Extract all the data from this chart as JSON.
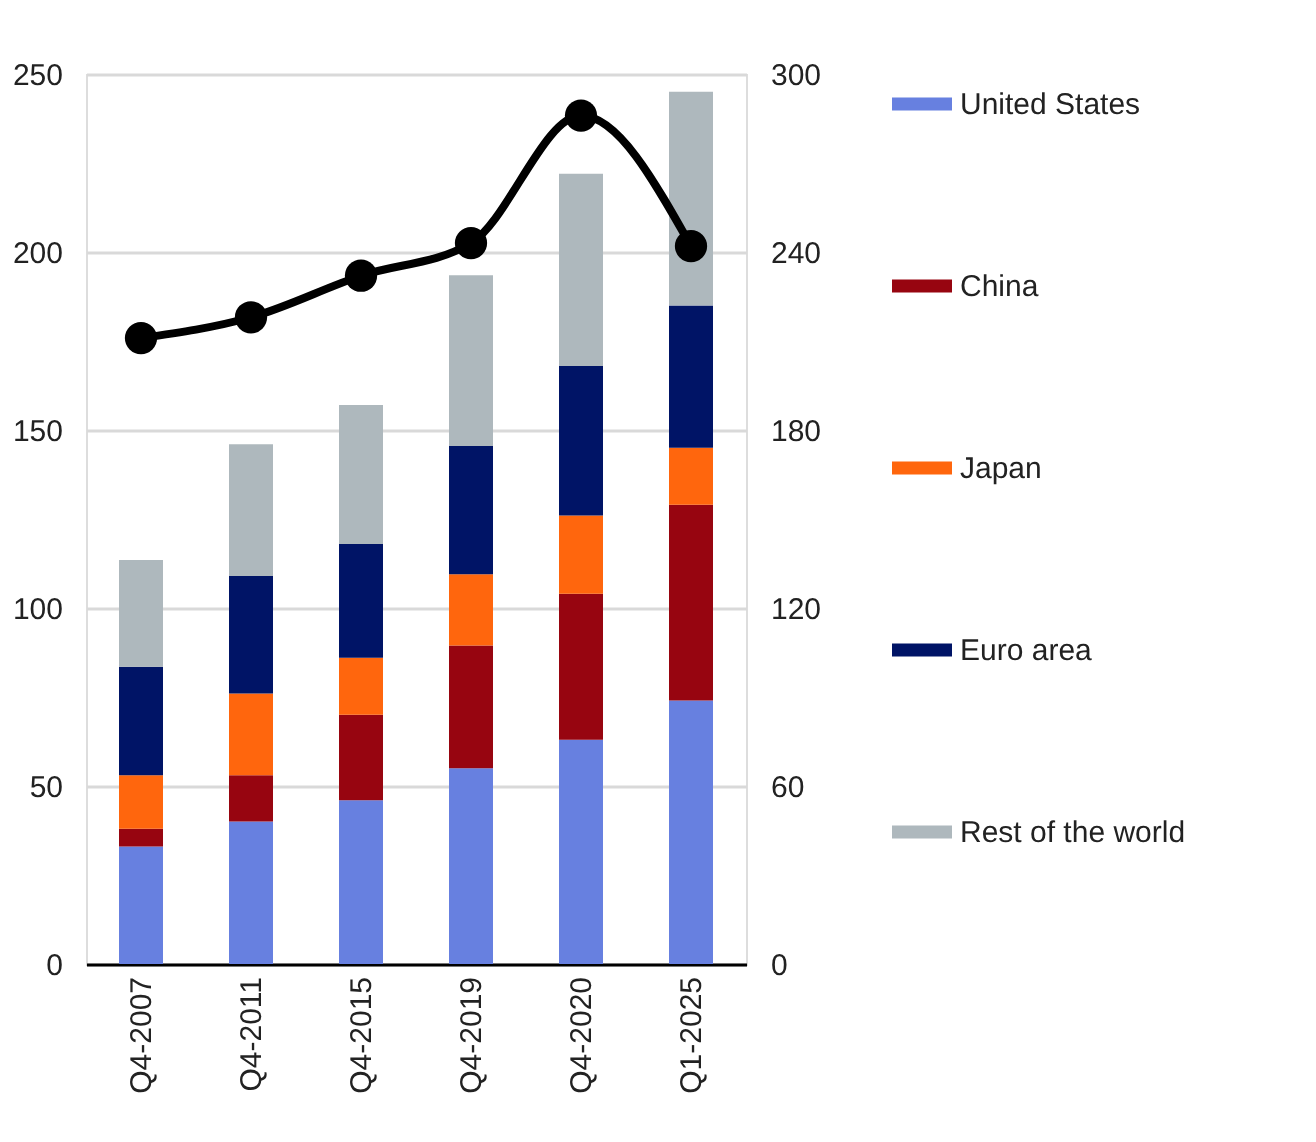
{
  "chart_data": {
    "type": "bar",
    "stacked": true,
    "categories": [
      "Q4-2007",
      "Q4-2011",
      "Q4-2015",
      "Q4-2019",
      "Q4-2020",
      "Q1-2025"
    ],
    "series": [
      {
        "name": "United States",
        "color": "#6780e0",
        "values": [
          33,
          40,
          46,
          55,
          63,
          74
        ]
      },
      {
        "name": "China",
        "color": "#970510",
        "values": [
          5,
          13,
          24,
          34.5,
          41,
          55
        ]
      },
      {
        "name": "Japan",
        "color": "#ff660d",
        "values": [
          15,
          23,
          16,
          20,
          22,
          16
        ]
      },
      {
        "name": "Euro area",
        "color": "#001466",
        "values": [
          30.5,
          33,
          32,
          36,
          42,
          40
        ]
      },
      {
        "name": "Rest of the world",
        "color": "#aeb8bd",
        "values": [
          30,
          37,
          39,
          48,
          54,
          60
        ]
      },
      {
        "type": "line",
        "axis": "y2",
        "color": "#000000",
        "values": [
          211,
          218,
          232,
          243,
          286,
          242
        ]
      }
    ],
    "ylim": [
      0,
      250
    ],
    "yticks": [
      0,
      50,
      100,
      150,
      200,
      250
    ],
    "y2lim": [
      0,
      300
    ],
    "y2ticks": [
      0,
      60,
      120,
      180,
      240,
      300
    ],
    "grid": "y",
    "legend": "right",
    "marker": "circle",
    "line_style": "solid"
  }
}
